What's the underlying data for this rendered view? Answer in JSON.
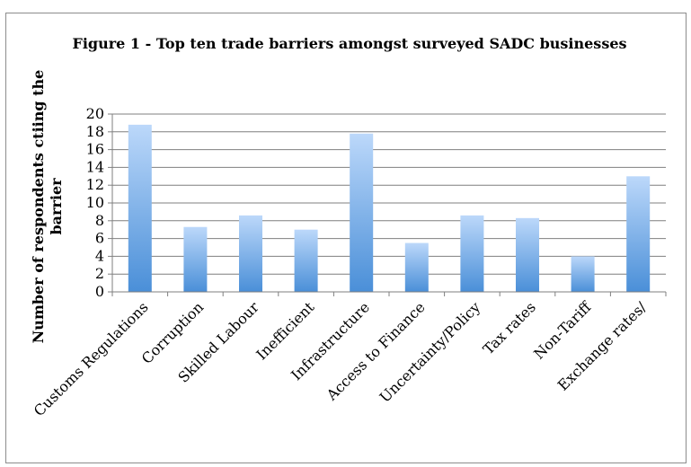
{
  "chart_data": {
    "type": "bar",
    "title": "Figure 1 - Top ten trade barriers amongst surveyed SADC businesses",
    "ylabel": "Number of  respondents ctiing the barrier",
    "ylabel_lines": [
      "Number of  respondents ctiing the",
      "barrier"
    ],
    "xlabel": "",
    "ylim": [
      0,
      20
    ],
    "yticks": [
      "0",
      "2",
      "4",
      "6",
      "8",
      "10",
      "12",
      "14",
      "16",
      "18",
      "20"
    ],
    "categories": [
      "Customs Regulations",
      "Corruption",
      "Skilled Labour",
      "Inefficient",
      "Infrastructure",
      "Access to Finance",
      "Uncertainty/Policy",
      "Tax rates",
      "Non-Tariff",
      "Exchange rates/"
    ],
    "values": [
      18.8,
      7.3,
      8.6,
      7.0,
      17.8,
      5.5,
      8.6,
      8.3,
      4.0,
      13.0
    ],
    "grid": true,
    "legend": "none",
    "colors": {
      "bar_top": "#bcd8fa",
      "bar_bottom": "#4a8fd8",
      "gridline": "#7f7f7f",
      "axis": "#7f7f7f"
    }
  }
}
